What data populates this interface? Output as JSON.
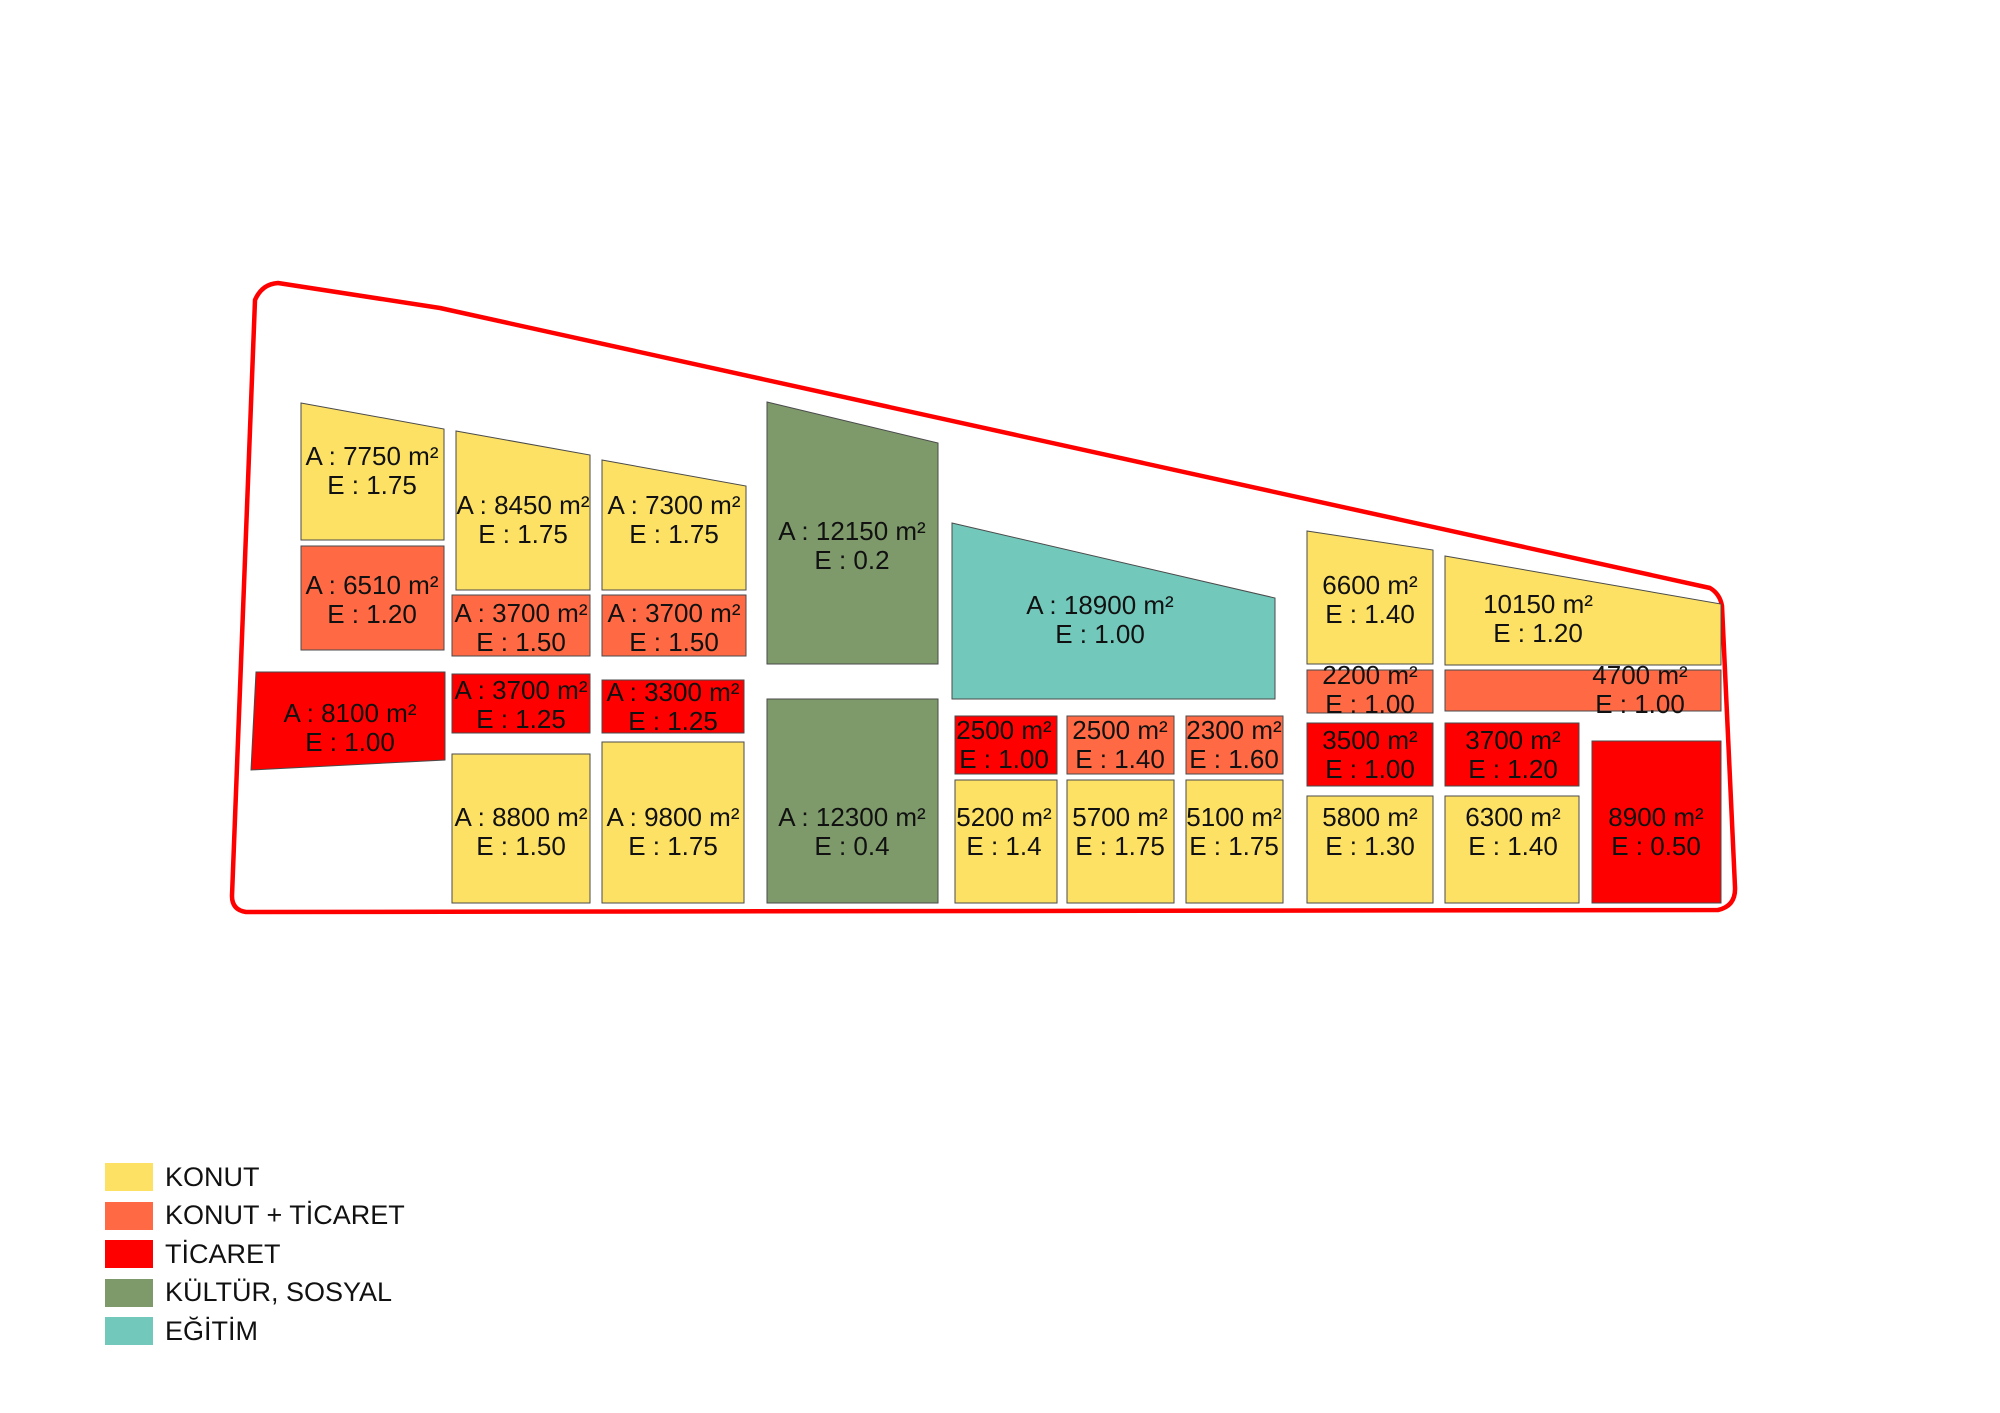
{
  "colors": {
    "konut": "#FDE165",
    "konut_ticaret": "#FF6A45",
    "ticaret": "#FF0000",
    "kultur_sosyal": "#7E9A6B",
    "egitim": "#72C9BB",
    "boundary": "#FF0000"
  },
  "legend": [
    {
      "label": "KONUT",
      "color": "#FDE165"
    },
    {
      "label": "KONUT + TİCARET",
      "color": "#FF6A45"
    },
    {
      "label": "TİCARET",
      "color": "#FF0000"
    },
    {
      "label": "KÜLTÜR, SOSYAL",
      "color": "#7E9A6B"
    },
    {
      "label": "EĞİTİM",
      "color": "#72C9BB"
    }
  ],
  "parcels": [
    {
      "use": "konut",
      "line1": "A : 7750 m²",
      "line2": "E : 1.75"
    },
    {
      "use": "konut_ticaret",
      "line1": "A : 6510 m²",
      "line2": "E : 1.20"
    },
    {
      "use": "ticaret",
      "line1": "A : 8100 m²",
      "line2": "E : 1.00"
    },
    {
      "use": "konut",
      "line1": "A : 8450 m²",
      "line2": "E : 1.75"
    },
    {
      "use": "konut_ticaret",
      "line1": "A : 3700 m²",
      "line2": "E : 1.50"
    },
    {
      "use": "ticaret",
      "line1": "A : 3700 m²",
      "line2": "E : 1.25"
    },
    {
      "use": "konut",
      "line1": "A : 8800 m²",
      "line2": "E : 1.50"
    },
    {
      "use": "konut",
      "line1": "A : 7300 m²",
      "line2": "E : 1.75"
    },
    {
      "use": "konut_ticaret",
      "line1": "A : 3700 m²",
      "line2": "E : 1.50"
    },
    {
      "use": "ticaret",
      "line1": "A : 3300 m²",
      "line2": "E : 1.25"
    },
    {
      "use": "konut",
      "line1": "A : 9800 m²",
      "line2": "E : 1.75"
    },
    {
      "use": "kultur_sosyal",
      "line1": "A : 12150 m²",
      "line2": "E : 0.2"
    },
    {
      "use": "kultur_sosyal",
      "line1": "A : 12300 m²",
      "line2": "E : 0.4"
    },
    {
      "use": "egitim",
      "line1": "A : 18900 m²",
      "line2": "E : 1.00"
    },
    {
      "use": "ticaret",
      "line1": "2500 m²",
      "line2": "E : 1.00"
    },
    {
      "use": "konut_ticaret",
      "line1": "2500 m²",
      "line2": "E : 1.40"
    },
    {
      "use": "konut_ticaret",
      "line1": "2300 m²",
      "line2": "E : 1.60"
    },
    {
      "use": "konut",
      "line1": "5200 m²",
      "line2": "E : 1.4"
    },
    {
      "use": "konut",
      "line1": "5700 m²",
      "line2": "E : 1.75"
    },
    {
      "use": "konut",
      "line1": "5100 m²",
      "line2": "E : 1.75"
    },
    {
      "use": "konut",
      "line1": "6600 m²",
      "line2": "E : 1.40"
    },
    {
      "use": "konut_ticaret",
      "line1": "2200 m²",
      "line2": "E : 1.00"
    },
    {
      "use": "ticaret",
      "line1": "3500 m²",
      "line2": "E : 1.00"
    },
    {
      "use": "konut",
      "line1": "5800 m²",
      "line2": "E : 1.30"
    },
    {
      "use": "konut",
      "line1": "10150 m²",
      "line2": "E : 1.20"
    },
    {
      "use": "konut_ticaret",
      "line1": "4700 m²",
      "line2": "E : 1.00"
    },
    {
      "use": "ticaret",
      "line1": "3700 m²",
      "line2": "E : 1.20"
    },
    {
      "use": "konut",
      "line1": "6300 m²",
      "line2": "E : 1.40"
    },
    {
      "use": "ticaret",
      "line1": "8900 m²",
      "line2": "E : 0.50"
    }
  ]
}
